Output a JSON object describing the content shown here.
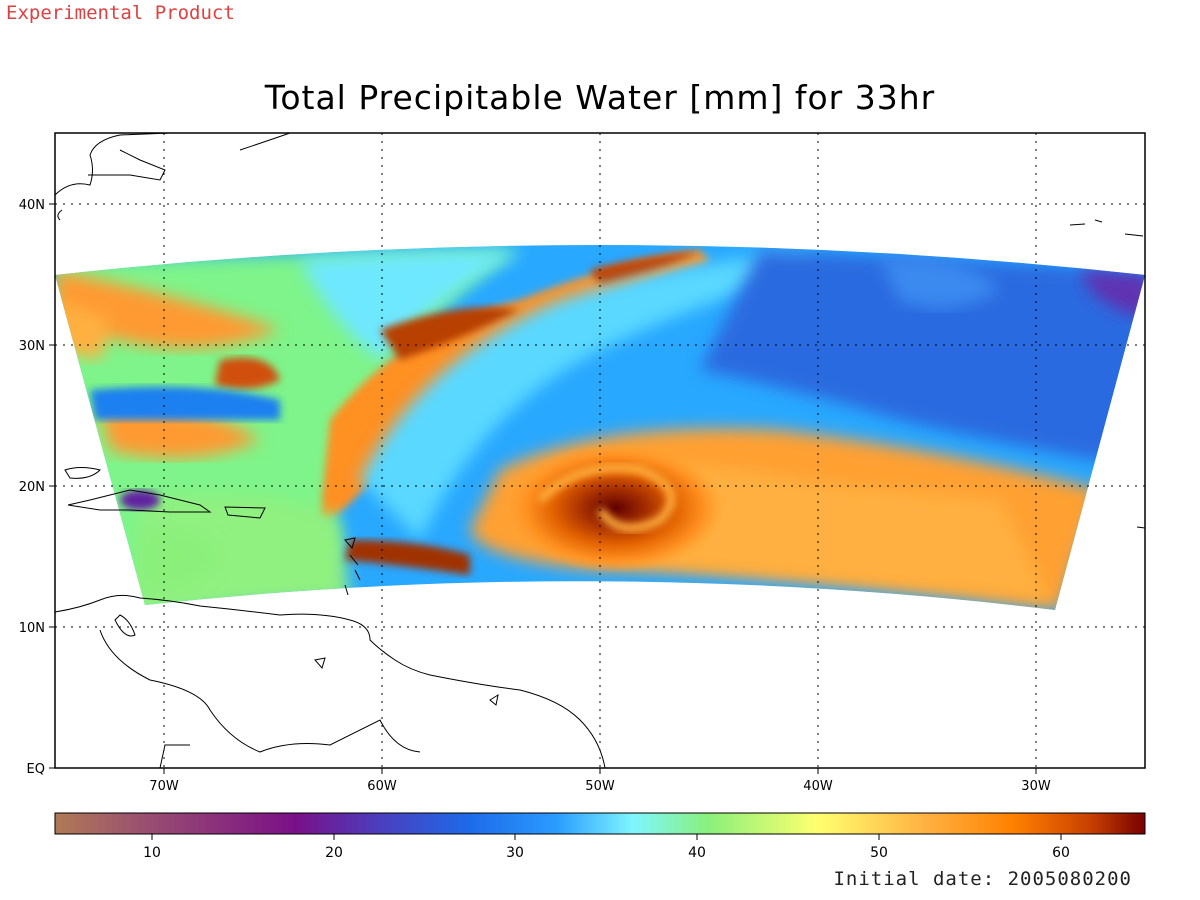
{
  "header": {
    "experimental_label": "Experimental Product",
    "title": "Total Precipitable Water [mm] for 33hr"
  },
  "footer": {
    "initial_date": "Initial date: 2005080200"
  },
  "map": {
    "lat_labels": [
      "40N",
      "30N",
      "20N",
      "10N",
      "EQ"
    ],
    "lon_labels": [
      "70W",
      "60W",
      "50W",
      "40W",
      "30W"
    ]
  },
  "colorbar": {
    "tick_labels": [
      "10",
      "20",
      "30",
      "40",
      "50",
      "60"
    ],
    "range": [
      5,
      65
    ],
    "stops": [
      "#b07a55",
      "#9a5070",
      "#7a1088",
      "#4a40c0",
      "#1e6ae8",
      "#2a9cff",
      "#7ff5ff",
      "#8af07a",
      "#ffff70",
      "#ffb040",
      "#ff8000",
      "#c84000",
      "#780000"
    ]
  }
}
